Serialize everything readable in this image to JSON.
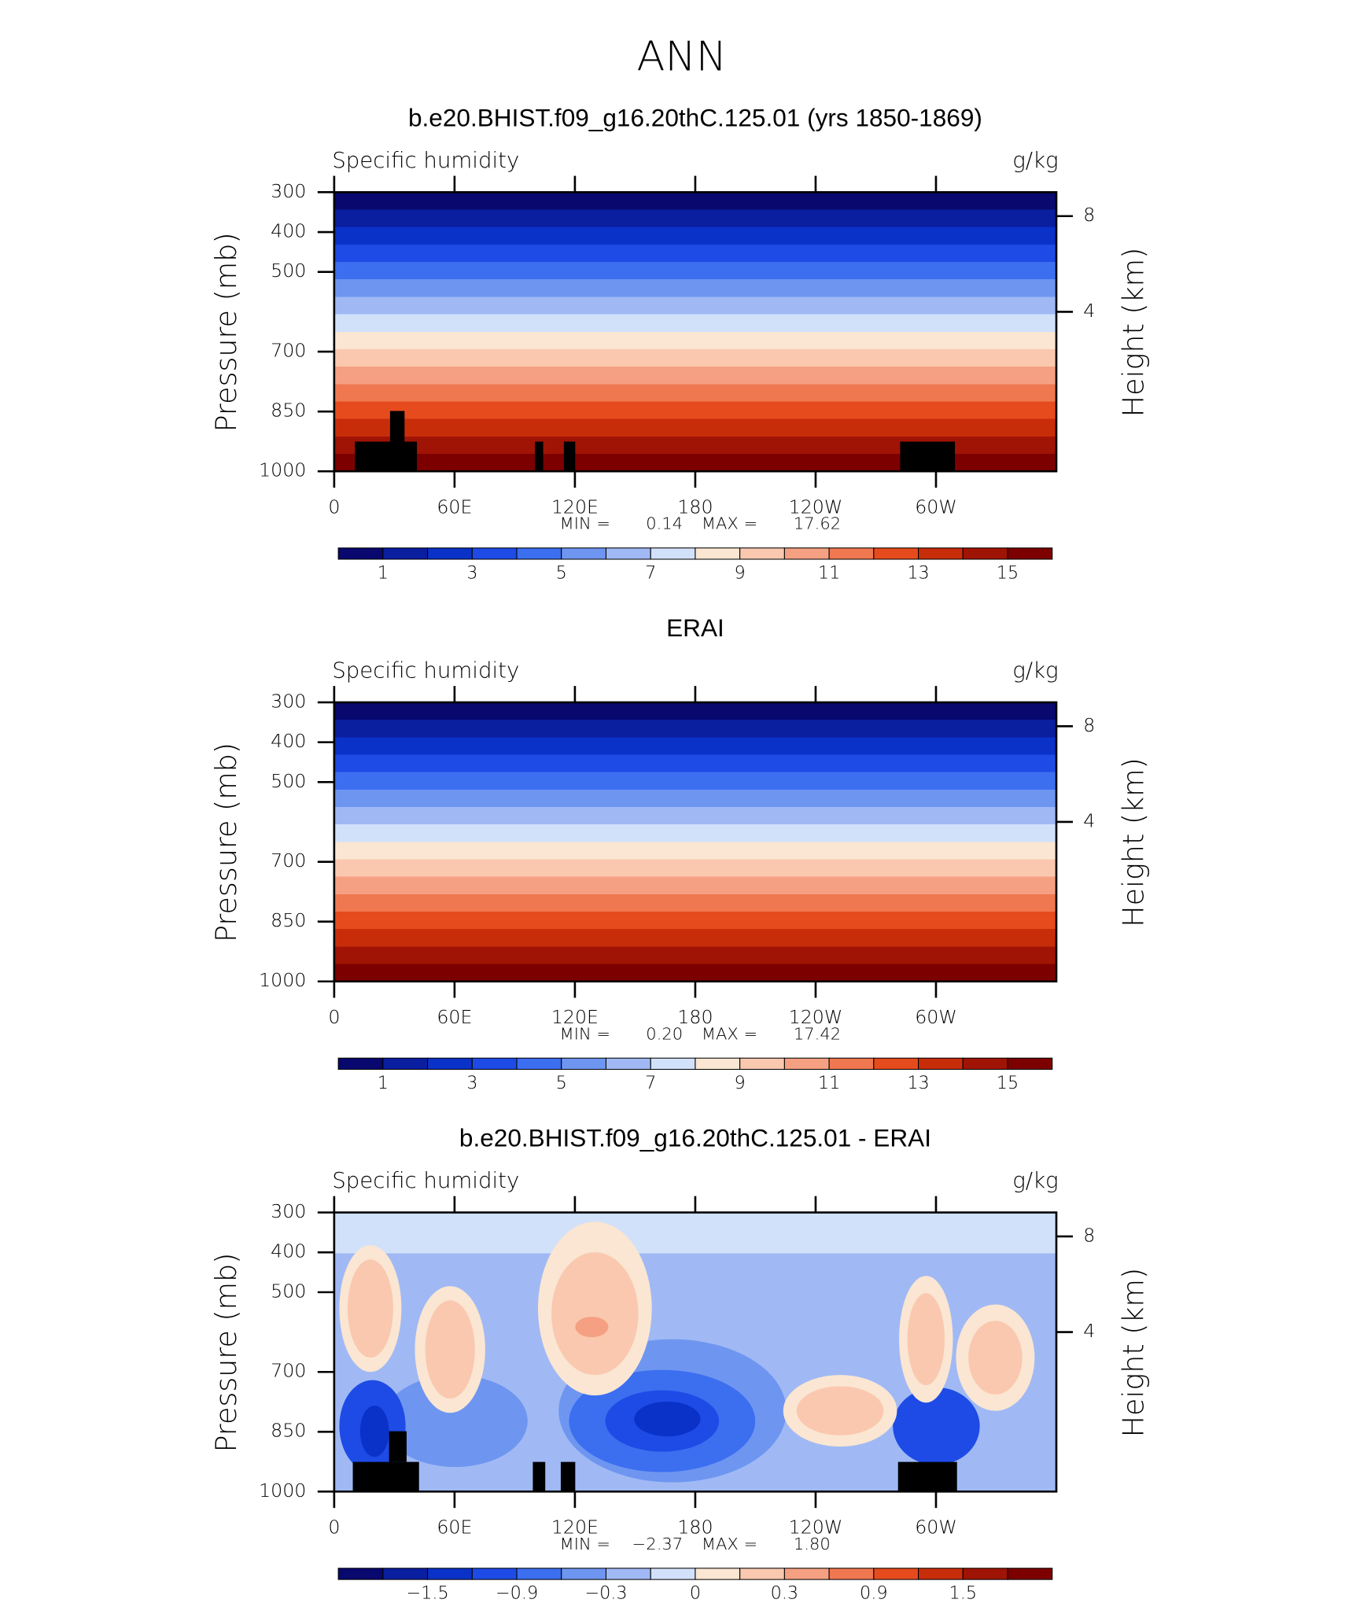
{
  "title": "ANN",
  "chart_data": [
    {
      "type": "contour",
      "title": "b.e20.BHIST.f09_g16.20thC.125.01 (yrs 1850-1869)",
      "left_label": "Specific humidity",
      "right_label": "g/kg",
      "ylabel": "Pressure (mb)",
      "y2label": "Height (km)",
      "xlim": [
        0,
        360
      ],
      "xticks": [
        0,
        {
          "value": 60,
          "label": "60E"
        },
        {
          "value": 120,
          "label": "120E"
        },
        180,
        {
          "value": 240,
          "label": "120W"
        },
        {
          "value": 300,
          "label": "60W"
        }
      ],
      "ylim": [
        1000,
        300
      ],
      "yticks": [
        300,
        400,
        500,
        700,
        850,
        1000
      ],
      "y2ticks": [
        8,
        4
      ],
      "min_label": "MIN =",
      "min": 0.14,
      "max_label": "MAX =",
      "max": 17.62,
      "colors": [
        "#08086e",
        "#0a1ea0",
        "#0a32c8",
        "#1e4be6",
        "#3c6ef0",
        "#6e96f0",
        "#a0b9f5",
        "#d2e1fa",
        "#fae6d2",
        "#fac8af",
        "#f5a082",
        "#f07850",
        "#e64b1e",
        "#c82d0a",
        "#a01405",
        "#7d0000"
      ],
      "levels": [
        1,
        2,
        3,
        4,
        5,
        6,
        7,
        8,
        9,
        10,
        11,
        12,
        13,
        14,
        15
      ],
      "colorbar_ticks": [
        1,
        3,
        5,
        7,
        9,
        11,
        13,
        15
      ]
    },
    {
      "type": "contour",
      "title": "ERAI",
      "left_label": "Specific humidity",
      "right_label": "g/kg",
      "ylabel": "Pressure (mb)",
      "y2label": "Height (km)",
      "xlim": [
        0,
        360
      ],
      "xticks": [
        0,
        {
          "value": 60,
          "label": "60E"
        },
        {
          "value": 120,
          "label": "120E"
        },
        180,
        {
          "value": 240,
          "label": "120W"
        },
        {
          "value": 300,
          "label": "60W"
        }
      ],
      "ylim": [
        1000,
        300
      ],
      "yticks": [
        300,
        400,
        500,
        700,
        850,
        1000
      ],
      "y2ticks": [
        8,
        4
      ],
      "min_label": "MIN =",
      "min": {
        "value": 0.2,
        "label": "0.20"
      },
      "max_label": "MAX =",
      "max": 17.42,
      "colors": [
        "#08086e",
        "#0a1ea0",
        "#0a32c8",
        "#1e4be6",
        "#3c6ef0",
        "#6e96f0",
        "#a0b9f5",
        "#d2e1fa",
        "#fae6d2",
        "#fac8af",
        "#f5a082",
        "#f07850",
        "#e64b1e",
        "#c82d0a",
        "#a01405",
        "#7d0000"
      ],
      "levels": [
        1,
        2,
        3,
        4,
        5,
        6,
        7,
        8,
        9,
        10,
        11,
        12,
        13,
        14,
        15
      ],
      "colorbar_ticks": [
        1,
        3,
        5,
        7,
        9,
        11,
        13,
        15
      ]
    },
    {
      "type": "contour",
      "title": "b.e20.BHIST.f09_g16.20thC.125.01 - ERAI",
      "left_label": "Specific humidity",
      "right_label": "g/kg",
      "ylabel": "Pressure (mb)",
      "y2label": "Height (km)",
      "xlim": [
        0,
        360
      ],
      "xticks": [
        0,
        {
          "value": 60,
          "label": "60E"
        },
        {
          "value": 120,
          "label": "120E"
        },
        180,
        {
          "value": 240,
          "label": "120W"
        },
        {
          "value": 300,
          "label": "60W"
        }
      ],
      "ylim": [
        1000,
        300
      ],
      "yticks": [
        300,
        400,
        500,
        700,
        850,
        1000
      ],
      "y2ticks": [
        8,
        4
      ],
      "min_label": "MIN =",
      "min": {
        "value": -2.37,
        "label": "−2.37"
      },
      "max_label": "MAX =",
      "max": {
        "value": 1.8,
        "label": "1.80"
      },
      "colors": [
        "#08086e",
        "#0a1ea0",
        "#0a32c8",
        "#1e4be6",
        "#3c6ef0",
        "#6e96f0",
        "#a0b9f5",
        "#d2e1fa",
        "#fae6d2",
        "#fac8af",
        "#f5a082",
        "#f07850",
        "#e64b1e",
        "#c82d0a",
        "#a01405",
        "#7d0000"
      ],
      "levels": [
        -1.8,
        -1.5,
        -1.2,
        -0.9,
        -0.6,
        -0.3,
        -0.1,
        0,
        0.1,
        0.3,
        0.6,
        0.9,
        1.2,
        1.5,
        1.8
      ],
      "colorbar_ticks": [
        {
          "value": -1.5,
          "label": "−1.5"
        },
        {
          "value": -0.9,
          "label": "−0.9"
        },
        {
          "value": -0.3,
          "label": "−0.3"
        },
        0,
        0.3,
        0.9,
        1.5
      ]
    }
  ]
}
